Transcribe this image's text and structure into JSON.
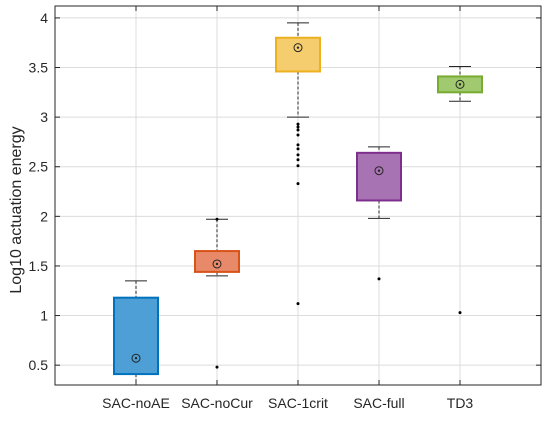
{
  "chart_data": {
    "type": "box",
    "title": "",
    "xlabel": "",
    "ylabel": "Log10 actuation energy",
    "ylim": [
      0.3,
      4.12
    ],
    "yticks": [
      0.5,
      1,
      1.5,
      2,
      2.5,
      3,
      3.5,
      4
    ],
    "ytick_labels": [
      "0.5",
      "1",
      "1.5",
      "2",
      "2.5",
      "3",
      "3.5",
      "4"
    ],
    "grid": true,
    "categories": [
      "SAC-noAE",
      "SAC-noCur",
      "SAC-1crit",
      "SAC-full",
      "TD3"
    ],
    "boxes": [
      {
        "name": "SAC-noAE",
        "whisker_low": 0.3,
        "q1": 0.41,
        "median": 0.57,
        "q3": 1.18,
        "whisker_high": 1.35,
        "outliers": [],
        "stroke": "#0072BD",
        "fill": "#4d9fd6"
      },
      {
        "name": "SAC-noCur",
        "whisker_low": 1.4,
        "q1": 1.44,
        "median": 1.52,
        "q3": 1.65,
        "whisker_high": 1.97,
        "outliers": [
          1.97,
          0.48
        ],
        "stroke": "#D95319",
        "fill": "#e8896a"
      },
      {
        "name": "SAC-1crit",
        "whisker_low": 3.0,
        "q1": 3.46,
        "median": 3.7,
        "q3": 3.8,
        "whisker_high": 3.95,
        "outliers": [
          2.93,
          2.9,
          2.87,
          2.82,
          2.72,
          2.68,
          2.62,
          2.57,
          2.51,
          2.33,
          1.12
        ],
        "stroke": "#EDB120",
        "fill": "#f5cd6e"
      },
      {
        "name": "SAC-full",
        "whisker_low": 1.98,
        "q1": 2.16,
        "median": 2.46,
        "q3": 2.64,
        "whisker_high": 2.7,
        "outliers": [
          1.37
        ],
        "stroke": "#7E2F8E",
        "fill": "#a873b3"
      },
      {
        "name": "TD3",
        "whisker_low": 3.16,
        "q1": 3.25,
        "median": 3.33,
        "q3": 3.41,
        "whisker_high": 3.51,
        "outliers": [
          1.03
        ],
        "stroke": "#77AC30",
        "fill": "#a1c96f"
      }
    ]
  }
}
